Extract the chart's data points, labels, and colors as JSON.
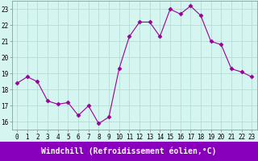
{
  "x": [
    0,
    1,
    2,
    3,
    4,
    5,
    6,
    7,
    8,
    9,
    10,
    11,
    12,
    13,
    14,
    15,
    16,
    17,
    18,
    19,
    20,
    21,
    22,
    23
  ],
  "y": [
    18.4,
    18.8,
    18.5,
    17.3,
    17.1,
    17.2,
    16.4,
    17.0,
    15.9,
    16.3,
    19.3,
    21.3,
    22.2,
    22.2,
    21.3,
    23.0,
    22.7,
    23.2,
    22.6,
    21.0,
    20.8,
    19.3,
    19.1,
    18.8
  ],
  "line_color": "#990099",
  "marker": "D",
  "marker_size": 2.5,
  "bg_color": "#d4f5f0",
  "grid_color": "#b0d8d0",
  "xlabel": "Windchill (Refroidissement éolien,°C)",
  "xlabel_bg": "#8800bb",
  "xlabel_color": "#ffffff",
  "ylim": [
    15.5,
    23.5
  ],
  "xlim": [
    -0.5,
    23.5
  ],
  "yticks": [
    16,
    17,
    18,
    19,
    20,
    21,
    22,
    23
  ],
  "xticks": [
    0,
    1,
    2,
    3,
    4,
    5,
    6,
    7,
    8,
    9,
    10,
    11,
    12,
    13,
    14,
    15,
    16,
    17,
    18,
    19,
    20,
    21,
    22,
    23
  ],
  "tick_fontsize": 5.5,
  "xlabel_fontsize": 7.0,
  "spine_color": "#888888"
}
